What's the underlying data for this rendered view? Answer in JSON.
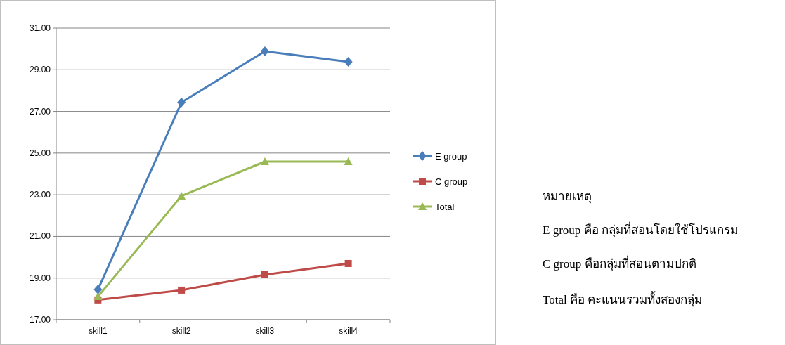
{
  "chart_data": {
    "type": "line",
    "categories": [
      "skill1",
      "skill2",
      "skill3",
      "skill4"
    ],
    "series": [
      {
        "name": "E group",
        "color": "#4a7ebb",
        "marker": "diamond",
        "values": [
          18.45,
          27.43,
          29.89,
          29.38
        ]
      },
      {
        "name": "C group",
        "color": "#be4b48",
        "marker": "square",
        "values": [
          17.95,
          18.42,
          19.16,
          19.7
        ]
      },
      {
        "name": "Total",
        "color": "#98b954",
        "marker": "triangle",
        "values": [
          18.11,
          22.94,
          24.59,
          24.59
        ]
      }
    ],
    "ylim": [
      17,
      31
    ],
    "yticks": [
      {
        "value": 17,
        "label": "17.00"
      },
      {
        "value": 19,
        "label": "19.00"
      },
      {
        "value": 21,
        "label": "21.00"
      },
      {
        "value": 23,
        "label": "23.00"
      },
      {
        "value": 25,
        "label": "25.00"
      },
      {
        "value": 27,
        "label": "27.00"
      },
      {
        "value": 29,
        "label": "29.00"
      },
      {
        "value": 31,
        "label": "31.00"
      }
    ],
    "grid": "y",
    "legend": "right",
    "line_style": "solid",
    "annotations": [
      "หมายเหตุ",
      "E group คือ กลุ่มที่สอนโดยใช้โปรแกรม",
      "C group คือกลุ่มที่สอนตามปกติ",
      "Total คือ คะแนนรวมทั้งสองกลุ่ม"
    ]
  }
}
